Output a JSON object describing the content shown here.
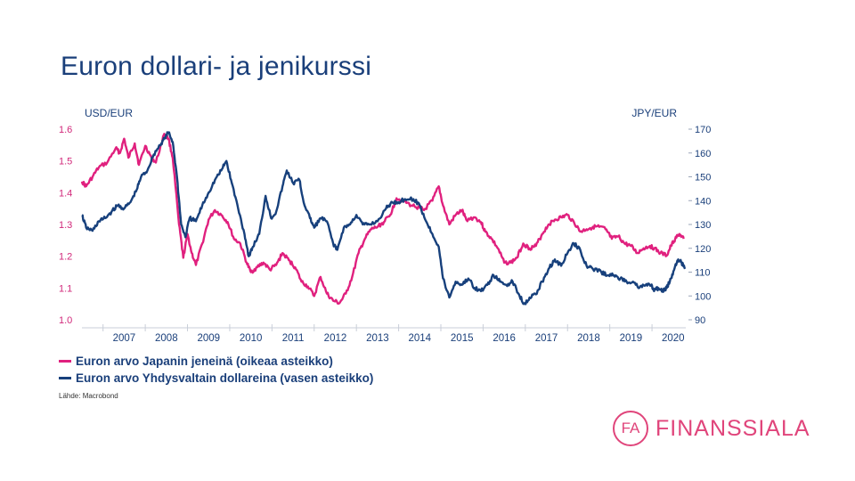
{
  "slide": {
    "title": "Euron dollari- ja jenikurssi",
    "source": "Lähde: Macrobond"
  },
  "logo": {
    "mark": "FA",
    "text": "FINANSSIALA",
    "color": "#e0457b"
  },
  "chart_data": {
    "type": "line",
    "title": "",
    "left_axis": {
      "label": "USD/EUR",
      "range": [
        1.0,
        1.6
      ],
      "ticks": [
        "1.6",
        "1.5",
        "1.4",
        "1.3",
        "1.2",
        "1.1",
        "1.0"
      ],
      "color": "#d1287a"
    },
    "right_axis": {
      "label": "JPY/EUR",
      "range": [
        90,
        170
      ],
      "ticks": [
        "170",
        "160",
        "150",
        "140",
        "130",
        "120",
        "110",
        "100",
        "90"
      ],
      "color": "#1a3f7a"
    },
    "x_axis": {
      "range": [
        2006.5,
        2020.8
      ],
      "ticks": [
        "2007",
        "2008",
        "2009",
        "2010",
        "2011",
        "2012",
        "2013",
        "2014",
        "2015",
        "2016",
        "2017",
        "2018",
        "2019",
        "2020"
      ]
    },
    "grid": false,
    "legend_position": "bottom-left",
    "series": [
      {
        "name": "Euron arvo Japanin jeneinä (oikeaa asteikko)",
        "axis": "right",
        "color": "#e0207e",
        "points": [
          [
            2006.5,
            148
          ],
          [
            2006.6,
            146
          ],
          [
            2006.75,
            150
          ],
          [
            2006.9,
            154
          ],
          [
            2007.1,
            156
          ],
          [
            2007.3,
            162
          ],
          [
            2007.4,
            160
          ],
          [
            2007.5,
            166
          ],
          [
            2007.6,
            158
          ],
          [
            2007.75,
            164
          ],
          [
            2007.85,
            155
          ],
          [
            2008.0,
            163
          ],
          [
            2008.15,
            158
          ],
          [
            2008.25,
            156
          ],
          [
            2008.45,
            168
          ],
          [
            2008.55,
            166
          ],
          [
            2008.65,
            158
          ],
          [
            2008.8,
            130
          ],
          [
            2008.9,
            116
          ],
          [
            2009.0,
            126
          ],
          [
            2009.1,
            118
          ],
          [
            2009.2,
            113
          ],
          [
            2009.35,
            122
          ],
          [
            2009.5,
            132
          ],
          [
            2009.65,
            136
          ],
          [
            2009.8,
            134
          ],
          [
            2009.95,
            131
          ],
          [
            2010.1,
            124
          ],
          [
            2010.25,
            122
          ],
          [
            2010.4,
            114
          ],
          [
            2010.5,
            110
          ],
          [
            2010.65,
            112
          ],
          [
            2010.8,
            114
          ],
          [
            2010.95,
            111
          ],
          [
            2011.1,
            113
          ],
          [
            2011.25,
            118
          ],
          [
            2011.4,
            115
          ],
          [
            2011.55,
            112
          ],
          [
            2011.7,
            106
          ],
          [
            2011.85,
            104
          ],
          [
            2012.0,
            100
          ],
          [
            2012.15,
            108
          ],
          [
            2012.3,
            101
          ],
          [
            2012.45,
            98
          ],
          [
            2012.6,
            97
          ],
          [
            2012.75,
            101
          ],
          [
            2012.9,
            108
          ],
          [
            2013.05,
            118
          ],
          [
            2013.2,
            124
          ],
          [
            2013.35,
            128
          ],
          [
            2013.5,
            129
          ],
          [
            2013.65,
            131
          ],
          [
            2013.8,
            134
          ],
          [
            2013.95,
            141
          ],
          [
            2014.1,
            140
          ],
          [
            2014.3,
            138
          ],
          [
            2014.5,
            137
          ],
          [
            2014.6,
            136
          ],
          [
            2014.8,
            140
          ],
          [
            2014.95,
            146
          ],
          [
            2015.05,
            138
          ],
          [
            2015.2,
            130
          ],
          [
            2015.35,
            134
          ],
          [
            2015.5,
            136
          ],
          [
            2015.6,
            132
          ],
          [
            2015.8,
            133
          ],
          [
            2015.95,
            131
          ],
          [
            2016.05,
            127
          ],
          [
            2016.2,
            124
          ],
          [
            2016.35,
            120
          ],
          [
            2016.5,
            114
          ],
          [
            2016.65,
            114
          ],
          [
            2016.8,
            116
          ],
          [
            2016.95,
            122
          ],
          [
            2017.1,
            120
          ],
          [
            2017.25,
            121
          ],
          [
            2017.4,
            126
          ],
          [
            2017.55,
            130
          ],
          [
            2017.7,
            132
          ],
          [
            2017.85,
            133
          ],
          [
            2018.0,
            134
          ],
          [
            2018.15,
            131
          ],
          [
            2018.3,
            127
          ],
          [
            2018.45,
            128
          ],
          [
            2018.6,
            129
          ],
          [
            2018.75,
            129
          ],
          [
            2018.9,
            128
          ],
          [
            2019.05,
            124
          ],
          [
            2019.2,
            125
          ],
          [
            2019.35,
            122
          ],
          [
            2019.5,
            121
          ],
          [
            2019.65,
            118
          ],
          [
            2019.8,
            120
          ],
          [
            2019.95,
            121
          ],
          [
            2020.05,
            120
          ],
          [
            2020.2,
            118
          ],
          [
            2020.35,
            117
          ],
          [
            2020.45,
            121
          ],
          [
            2020.55,
            124
          ],
          [
            2020.65,
            126
          ],
          [
            2020.75,
            124
          ]
        ]
      },
      {
        "name": "Euron arvo Yhdysvaltain dollareina (vasen asteikko)",
        "axis": "left",
        "color": "#17407c",
        "points": [
          [
            2006.5,
            1.33
          ],
          [
            2006.6,
            1.29
          ],
          [
            2006.75,
            1.28
          ],
          [
            2006.9,
            1.31
          ],
          [
            2007.05,
            1.32
          ],
          [
            2007.2,
            1.34
          ],
          [
            2007.35,
            1.36
          ],
          [
            2007.5,
            1.35
          ],
          [
            2007.65,
            1.37
          ],
          [
            2007.8,
            1.41
          ],
          [
            2007.9,
            1.45
          ],
          [
            2008.05,
            1.47
          ],
          [
            2008.2,
            1.52
          ],
          [
            2008.35,
            1.55
          ],
          [
            2008.45,
            1.57
          ],
          [
            2008.55,
            1.59
          ],
          [
            2008.65,
            1.56
          ],
          [
            2008.75,
            1.45
          ],
          [
            2008.85,
            1.3
          ],
          [
            2008.95,
            1.26
          ],
          [
            2009.05,
            1.32
          ],
          [
            2009.2,
            1.31
          ],
          [
            2009.35,
            1.36
          ],
          [
            2009.5,
            1.4
          ],
          [
            2009.65,
            1.44
          ],
          [
            2009.8,
            1.47
          ],
          [
            2009.92,
            1.5
          ],
          [
            2010.05,
            1.43
          ],
          [
            2010.2,
            1.35
          ],
          [
            2010.35,
            1.27
          ],
          [
            2010.45,
            1.2
          ],
          [
            2010.55,
            1.23
          ],
          [
            2010.7,
            1.27
          ],
          [
            2010.85,
            1.39
          ],
          [
            2010.98,
            1.32
          ],
          [
            2011.1,
            1.34
          ],
          [
            2011.25,
            1.42
          ],
          [
            2011.35,
            1.47
          ],
          [
            2011.5,
            1.43
          ],
          [
            2011.65,
            1.44
          ],
          [
            2011.75,
            1.37
          ],
          [
            2011.9,
            1.32
          ],
          [
            2012.0,
            1.29
          ],
          [
            2012.15,
            1.32
          ],
          [
            2012.3,
            1.31
          ],
          [
            2012.45,
            1.24
          ],
          [
            2012.55,
            1.22
          ],
          [
            2012.7,
            1.29
          ],
          [
            2012.85,
            1.3
          ],
          [
            2013.0,
            1.33
          ],
          [
            2013.15,
            1.3
          ],
          [
            2013.3,
            1.3
          ],
          [
            2013.5,
            1.31
          ],
          [
            2013.7,
            1.35
          ],
          [
            2013.85,
            1.37
          ],
          [
            2014.0,
            1.37
          ],
          [
            2014.15,
            1.38
          ],
          [
            2014.35,
            1.38
          ],
          [
            2014.5,
            1.36
          ],
          [
            2014.65,
            1.31
          ],
          [
            2014.8,
            1.27
          ],
          [
            2014.95,
            1.23
          ],
          [
            2015.05,
            1.13
          ],
          [
            2015.2,
            1.07
          ],
          [
            2015.35,
            1.12
          ],
          [
            2015.5,
            1.11
          ],
          [
            2015.65,
            1.13
          ],
          [
            2015.8,
            1.1
          ],
          [
            2015.95,
            1.09
          ],
          [
            2016.1,
            1.11
          ],
          [
            2016.25,
            1.14
          ],
          [
            2016.4,
            1.12
          ],
          [
            2016.55,
            1.11
          ],
          [
            2016.7,
            1.12
          ],
          [
            2016.85,
            1.08
          ],
          [
            2016.97,
            1.05
          ],
          [
            2017.1,
            1.07
          ],
          [
            2017.25,
            1.08
          ],
          [
            2017.4,
            1.12
          ],
          [
            2017.55,
            1.16
          ],
          [
            2017.7,
            1.19
          ],
          [
            2017.85,
            1.17
          ],
          [
            2018.0,
            1.21
          ],
          [
            2018.15,
            1.24
          ],
          [
            2018.3,
            1.22
          ],
          [
            2018.45,
            1.17
          ],
          [
            2018.6,
            1.16
          ],
          [
            2018.8,
            1.15
          ],
          [
            2018.95,
            1.14
          ],
          [
            2019.1,
            1.14
          ],
          [
            2019.25,
            1.13
          ],
          [
            2019.4,
            1.12
          ],
          [
            2019.55,
            1.12
          ],
          [
            2019.7,
            1.1
          ],
          [
            2019.85,
            1.11
          ],
          [
            2019.98,
            1.11
          ],
          [
            2020.05,
            1.09
          ],
          [
            2020.15,
            1.1
          ],
          [
            2020.25,
            1.09
          ],
          [
            2020.35,
            1.1
          ],
          [
            2020.45,
            1.13
          ],
          [
            2020.55,
            1.17
          ],
          [
            2020.62,
            1.19
          ],
          [
            2020.7,
            1.18
          ],
          [
            2020.78,
            1.16
          ]
        ]
      }
    ]
  }
}
